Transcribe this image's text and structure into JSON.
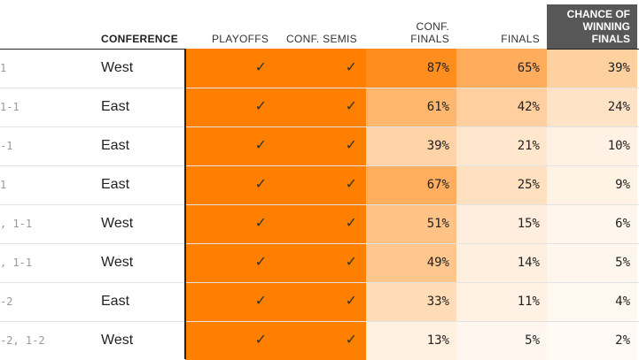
{
  "header": {
    "conference": "CONFERENCE",
    "playoffs": "PLAYOFFS",
    "conf_semis": "CONF. SEMIS",
    "conf_finals_1": "CONF.",
    "conf_finals_2": "FINALS",
    "finals": "FINALS",
    "win_1": "CHANCE OF",
    "win_2": "WINNING",
    "win_3": "FINALS"
  },
  "rows": [
    {
      "record": "1",
      "conference": "West",
      "playoffs": "✓",
      "conf_semis": "✓",
      "conf_finals": "87%",
      "finals": "65%",
      "win": "39%",
      "cf_color": "#ff8e1f",
      "fn_color": "#ffac5c",
      "wn_color": "#ffd19e"
    },
    {
      "record": "1-1",
      "conference": "East",
      "playoffs": "✓",
      "conf_semis": "✓",
      "conf_finals": "61%",
      "finals": "42%",
      "win": "24%",
      "cf_color": "#ffb66f",
      "fn_color": "#ffcf9f",
      "wn_color": "#ffe3c6"
    },
    {
      "record": "-1",
      "conference": "East",
      "playoffs": "✓",
      "conf_semis": "✓",
      "conf_finals": "39%",
      "finals": "21%",
      "win": "10%",
      "cf_color": "#ffd3a6",
      "fn_color": "#ffe6cc",
      "wn_color": "#fff2e4"
    },
    {
      "record": "1",
      "conference": "East",
      "playoffs": "✓",
      "conf_semis": "✓",
      "conf_finals": "67%",
      "finals": "25%",
      "win": "9%",
      "cf_color": "#ffae60",
      "fn_color": "#ffe1c2",
      "wn_color": "#fff3e6"
    },
    {
      "record": ", 1-1",
      "conference": "West",
      "playoffs": "✓",
      "conf_semis": "✓",
      "conf_finals": "51%",
      "finals": "15%",
      "win": "6%",
      "cf_color": "#ffc388",
      "fn_color": "#ffeedd",
      "wn_color": "#fff6ed"
    },
    {
      "record": ", 1-1",
      "conference": "West",
      "playoffs": "✓",
      "conf_semis": "✓",
      "conf_finals": "49%",
      "finals": "14%",
      "win": "5%",
      "cf_color": "#ffc68e",
      "fn_color": "#ffefdf",
      "wn_color": "#fff7ee"
    },
    {
      "record": "-2",
      "conference": "East",
      "playoffs": "✓",
      "conf_semis": "✓",
      "conf_finals": "33%",
      "finals": "11%",
      "win": "4%",
      "cf_color": "#ffdbb6",
      "fn_color": "#fff1e4",
      "wn_color": "#fff8f0"
    },
    {
      "record": "-2, 1-2",
      "conference": "West",
      "playoffs": "✓",
      "conf_semis": "✓",
      "conf_finals": "13%",
      "finals": "5%",
      "win": "2%",
      "cf_color": "#fff0e0",
      "fn_color": "#fff7ef",
      "wn_color": "#fffaf5"
    }
  ]
}
